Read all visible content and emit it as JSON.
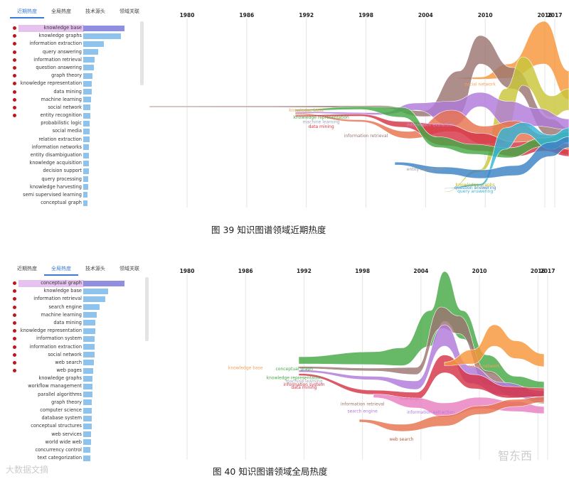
{
  "panels": [
    {
      "tabs": [
        "近期热度",
        "全局热度",
        "技术源头",
        "领域关联"
      ],
      "active_tab": 0,
      "keywords": [
        {
          "label": "knowledge base",
          "value": 100,
          "dot": true,
          "highlight": true
        },
        {
          "label": "knowledge graphs",
          "value": 91,
          "dot": true
        },
        {
          "label": "information extraction",
          "value": 50,
          "dot": true
        },
        {
          "label": "query answering",
          "value": 36,
          "dot": true
        },
        {
          "label": "information retrieval",
          "value": 27,
          "dot": true
        },
        {
          "label": "question answering",
          "value": 25,
          "dot": true
        },
        {
          "label": "graph theory",
          "value": 23,
          "dot": true
        },
        {
          "label": "knowledge representation",
          "value": 21,
          "dot": true
        },
        {
          "label": "data mining",
          "value": 20,
          "dot": true
        },
        {
          "label": "machine learning",
          "value": 19,
          "dot": true
        },
        {
          "label": "social network",
          "value": 18,
          "dot": true
        },
        {
          "label": "entity recognition",
          "value": 17,
          "dot": true
        },
        {
          "label": "probabilistic logic",
          "value": 16
        },
        {
          "label": "social media",
          "value": 15
        },
        {
          "label": "relation extraction",
          "value": 15
        },
        {
          "label": "information networks",
          "value": 14
        },
        {
          "label": "entity disambiguation",
          "value": 14
        },
        {
          "label": "knowledge acquisition",
          "value": 13
        },
        {
          "label": "decision support",
          "value": 13
        },
        {
          "label": "query processing",
          "value": 12
        },
        {
          "label": "knowledge harvesting",
          "value": 12
        },
        {
          "label": "semi supervised learning",
          "value": 11
        },
        {
          "label": "conceptual graph",
          "value": 11
        }
      ],
      "caption": "图  39 知识图谱领域近期热度"
    },
    {
      "tabs": [
        "近期热度",
        "全局热度",
        "技术源头",
        "领域关联"
      ],
      "active_tab": 1,
      "keywords": [
        {
          "label": "conceptual graph",
          "value": 100,
          "dot": true,
          "highlight": true
        },
        {
          "label": "knowledge base",
          "value": 60,
          "dot": true
        },
        {
          "label": "information retrieval",
          "value": 53,
          "dot": true
        },
        {
          "label": "search engine",
          "value": 40,
          "dot": true
        },
        {
          "label": "machine learning",
          "value": 33,
          "dot": true
        },
        {
          "label": "data mining",
          "value": 30,
          "dot": true
        },
        {
          "label": "knowledge representation",
          "value": 29,
          "dot": true
        },
        {
          "label": "information system",
          "value": 28,
          "dot": true
        },
        {
          "label": "information extraction",
          "value": 28,
          "dot": true
        },
        {
          "label": "social network",
          "value": 27,
          "dot": true
        },
        {
          "label": "web search",
          "value": 25,
          "dot": true
        },
        {
          "label": "web pages",
          "value": 24,
          "dot": true
        },
        {
          "label": "knowledge graphs",
          "value": 23
        },
        {
          "label": "workflow management",
          "value": 22
        },
        {
          "label": "parallel algorithms",
          "value": 22
        },
        {
          "label": "graph theory",
          "value": 21
        },
        {
          "label": "computer science",
          "value": 21
        },
        {
          "label": "database system",
          "value": 20
        },
        {
          "label": "conceptual structures",
          "value": 20
        },
        {
          "label": "web services",
          "value": 19
        },
        {
          "label": "world wide web",
          "value": 19
        },
        {
          "label": "concurrency control",
          "value": 18
        },
        {
          "label": "text categorization",
          "value": 18
        }
      ],
      "caption": "图  40 知识图谱领域全局热度"
    }
  ],
  "watermarks": {
    "left": "大数据文摘",
    "right": "智东西"
  },
  "chart_data": [
    {
      "type": "area",
      "subtype": "streamgraph",
      "title": "图 39 知识图谱领域近期热度",
      "x": [
        1980,
        1986,
        1992,
        1998,
        2004,
        2010,
        2016,
        2017
      ],
      "series_labels": [
        {
          "name": "knowledge base",
          "color": "#f5a05a",
          "year": 1992,
          "pos": 0.48
        },
        {
          "name": "knowledge representation",
          "color": "#45a845",
          "year": 1993.5,
          "pos": 0.52
        },
        {
          "name": "machine learning",
          "color": "#9aa5b8",
          "year": 1993.5,
          "pos": 0.545
        },
        {
          "name": "data mining",
          "color": "#d63447",
          "year": 1993.5,
          "pos": 0.57
        },
        {
          "name": "information retrieval",
          "color": "#9b7370",
          "year": 1998,
          "pos": 0.62
        },
        {
          "name": "information extraction",
          "color": "#cc99dd",
          "year": 2004.5,
          "pos": 0.56
        },
        {
          "name": "social network",
          "color": "#f5a05a",
          "year": 2009.5,
          "pos": 0.34
        },
        {
          "name": "entity recognition",
          "color": "#999999",
          "year": 2004,
          "pos": 0.8
        },
        {
          "name": "knowledge graphs",
          "color": "#b5b81c",
          "year": 2009,
          "pos": 0.885
        },
        {
          "name": "question answering",
          "color": "#3b82c4",
          "year": 2009,
          "pos": 0.9
        },
        {
          "name": "query answering",
          "color": "#35b5d6",
          "year": 2009,
          "pos": 0.92
        }
      ],
      "series": [
        {
          "name": "social network",
          "color": "#f7963a"
        },
        {
          "name": "knowledge base",
          "color": "#9c7570"
        },
        {
          "name": "knowledge graphs",
          "color": "#c9c63a"
        },
        {
          "name": "information extraction",
          "color": "#b07ad9"
        },
        {
          "name": "information retrieval",
          "color": "#e8734f"
        },
        {
          "name": "data mining",
          "color": "#d63447"
        },
        {
          "name": "knowledge representation",
          "color": "#45a845"
        },
        {
          "name": "query answering",
          "color": "#35b5d6"
        },
        {
          "name": "question answering",
          "color": "#3b82c4"
        }
      ]
    },
    {
      "type": "area",
      "subtype": "streamgraph",
      "title": "图 40 知识图谱领域全局热度",
      "x": [
        1980,
        1986,
        1992,
        1998,
        2004,
        2010,
        2016,
        2017
      ],
      "series_labels": [
        {
          "name": "knowledge base",
          "color": "#f5a05a",
          "year": 1986,
          "pos": 0.5
        },
        {
          "name": "conceptual graph",
          "color": "#45a845",
          "year": 1991,
          "pos": 0.505
        },
        {
          "name": "knowledge representation",
          "color": "#45a845",
          "year": 1991,
          "pos": 0.555
        },
        {
          "name": "machine learning",
          "color": "#9aa5b8",
          "year": 1992,
          "pos": 0.575
        },
        {
          "name": "information system",
          "color": "#d63447",
          "year": 1992,
          "pos": 0.592
        },
        {
          "name": "data mining",
          "color": "#d63447",
          "year": 1992,
          "pos": 0.608
        },
        {
          "name": "information retrieval",
          "color": "#9b7370",
          "year": 1998,
          "pos": 0.7
        },
        {
          "name": "search engine",
          "color": "#b07ad9",
          "year": 1998,
          "pos": 0.74
        },
        {
          "name": "web pages",
          "color": "#e87fbf",
          "year": 2003,
          "pos": 0.67
        },
        {
          "name": "information extraction",
          "color": "#b07ad9",
          "year": 2005,
          "pos": 0.745
        },
        {
          "name": "social network",
          "color": "#f5a05a",
          "year": 2010.5,
          "pos": 0.49
        },
        {
          "name": "web search",
          "color": "#b05b3b",
          "year": 2002,
          "pos": 0.895
        }
      ],
      "series": [
        {
          "name": "conceptual graph",
          "color": "#45a845"
        },
        {
          "name": "knowledge base",
          "color": "#9c7570"
        },
        {
          "name": "information retrieval",
          "color": "#b07ad9"
        },
        {
          "name": "search engine",
          "color": "#d63447"
        },
        {
          "name": "social network",
          "color": "#f7963a"
        },
        {
          "name": "web pages",
          "color": "#e87fbf"
        },
        {
          "name": "web search",
          "color": "#e8734f"
        }
      ]
    }
  ]
}
